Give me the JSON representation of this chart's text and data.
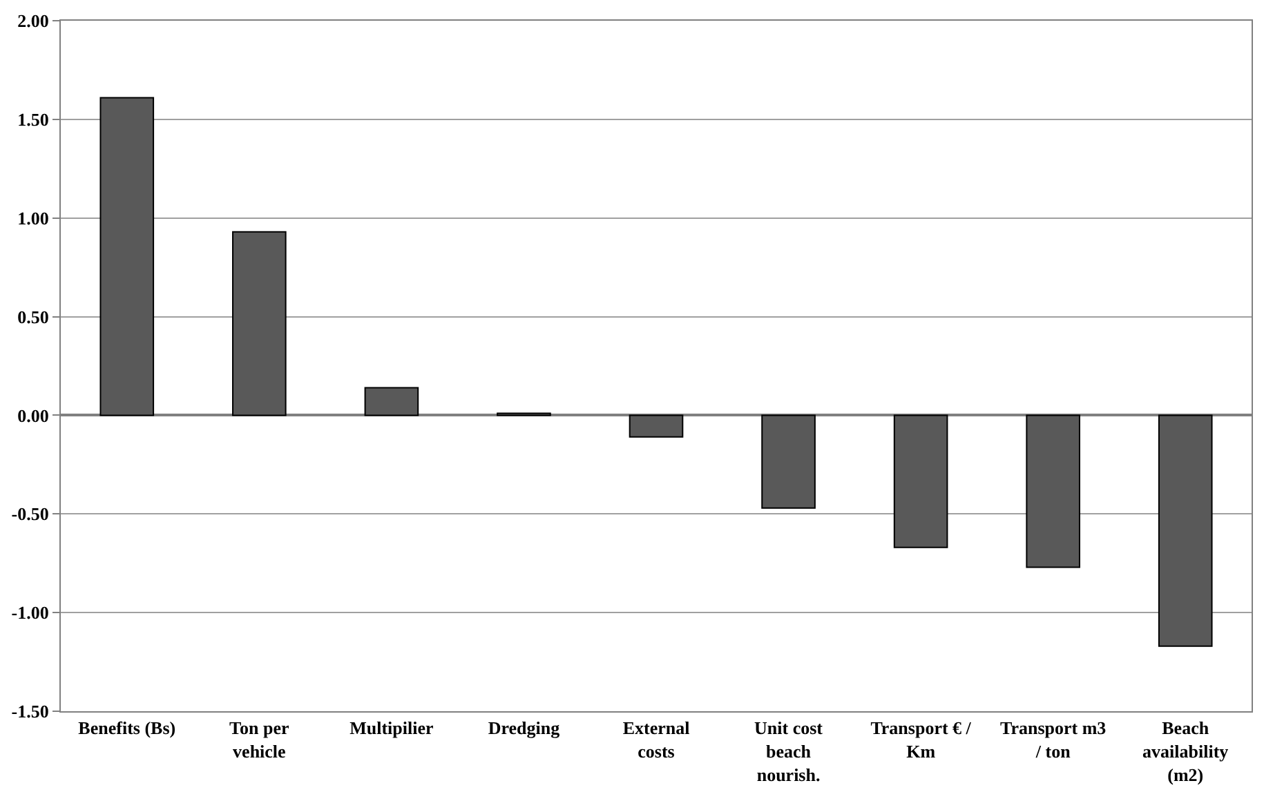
{
  "chart_data": {
    "type": "bar",
    "categories": [
      "Benefits (Bs)",
      "Ton per vehicle",
      "Multipilier",
      "Dredging",
      "External costs",
      "Unit cost beach nourish.",
      "Transport € / Km",
      "Transport m3 / ton",
      "Beach availability (m2)"
    ],
    "values": [
      1.61,
      0.93,
      0.14,
      0.01,
      -0.11,
      -0.47,
      -0.67,
      -0.77,
      -1.17
    ],
    "color": "#595959",
    "ylim": [
      -1.5,
      2.0
    ],
    "yticks": [
      {
        "value": -1.5,
        "label": "-1.50"
      },
      {
        "value": -1.0,
        "label": "-1.00"
      },
      {
        "value": -0.5,
        "label": "-0.50"
      },
      {
        "value": 0,
        "label": "0.00"
      },
      {
        "value": 0.5,
        "label": "0.50"
      },
      {
        "value": 1.0,
        "label": "1.00"
      },
      {
        "value": 1.5,
        "label": "1.50"
      },
      {
        "value": 2.0,
        "label": "2.00"
      }
    ],
    "grid": "y",
    "legend": false
  }
}
